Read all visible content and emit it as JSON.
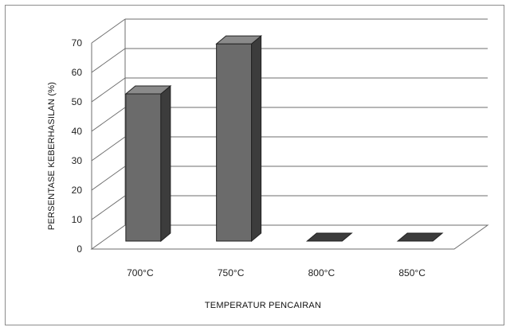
{
  "chart_data": {
    "type": "bar",
    "title": "",
    "xlabel": "TEMPERATUR PENCAIRAN",
    "ylabel": "PERSENTASE KEBERHASILAN (%)",
    "categories": [
      "700°C",
      "750°C",
      "800°C",
      "850°C"
    ],
    "values": [
      50,
      67,
      0,
      0
    ],
    "ylim": [
      0,
      70
    ],
    "yticks": [
      0,
      10,
      20,
      30,
      40,
      50,
      60,
      70
    ],
    "grid": true,
    "legend": "none",
    "colors": {
      "bar_front": "#6b6b6b",
      "bar_side": "#3c3c3c",
      "bar_top": "#8a8a8a",
      "gridline": "#6e6e6e"
    }
  }
}
